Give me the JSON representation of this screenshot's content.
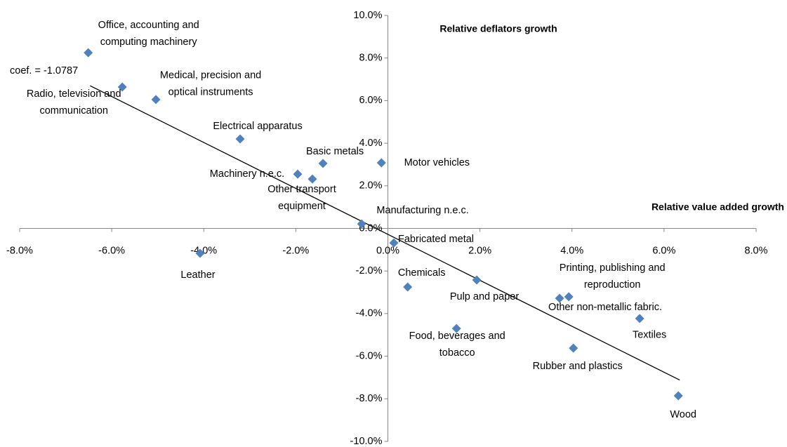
{
  "chart_data": {
    "type": "scatter",
    "x_label": "Relative value added growth",
    "y_label": "Relative deflators growth",
    "annotation": "coef. = -1.0787",
    "color": "#4f81bd",
    "xlim": [
      -8,
      8
    ],
    "ylim": [
      -10,
      10
    ],
    "xticks": [
      {
        "value": -8,
        "label": "-8.0%"
      },
      {
        "value": -6,
        "label": "-6.0%"
      },
      {
        "value": -4,
        "label": "-4.0%"
      },
      {
        "value": -2,
        "label": "-2.0%"
      },
      {
        "value": 0,
        "label": "0.0%"
      },
      {
        "value": 2,
        "label": "2.0%"
      },
      {
        "value": 4,
        "label": "4.0%"
      },
      {
        "value": 6,
        "label": "6.0%"
      },
      {
        "value": 8,
        "label": "8.0%"
      }
    ],
    "yticks": [
      {
        "value": -10,
        "label": "-10.0%"
      },
      {
        "value": -8,
        "label": "-8.0%"
      },
      {
        "value": -6,
        "label": "-6.0%"
      },
      {
        "value": -4,
        "label": "-4.0%"
      },
      {
        "value": -2,
        "label": "-2.0%"
      },
      {
        "value": 0,
        "label": "0.0%"
      },
      {
        "value": 2,
        "label": "2.0%"
      },
      {
        "value": 4,
        "label": "4.0%"
      },
      {
        "value": 6,
        "label": "6.0%"
      },
      {
        "value": 8,
        "label": "8.0%"
      },
      {
        "value": 10,
        "label": "10.0%"
      }
    ],
    "labels": [
      [
        "Office, accounting and",
        "computing machinery"
      ],
      [
        "Radio, television and",
        "communication"
      ],
      [
        "Medical, precision and",
        "optical instruments"
      ],
      [
        "Electrical apparatus"
      ],
      [
        "Basic metals"
      ],
      [
        "Machinery  n.e.c."
      ],
      [
        "Other transport",
        "equipment"
      ],
      [
        "Motor vehicles"
      ],
      [
        "Manufacturing n.e.c."
      ],
      [
        "Fabricated metal"
      ],
      [
        "Leather"
      ],
      [
        "Chemicals"
      ],
      [
        "Pulp and paper"
      ],
      [
        "Printing, publishing and",
        "reproduction"
      ],
      [
        "Other non-metallic fabric."
      ],
      [
        "Food, beverages and",
        "tobacco"
      ],
      [
        "Textiles"
      ],
      [
        "Rubber and plastics"
      ],
      [
        "Wood"
      ]
    ],
    "x": [
      -6.51,
      -5.77,
      -5.04,
      -3.21,
      -1.41,
      -1.96,
      -1.64,
      -0.14,
      -0.57,
      0.13,
      -4.08,
      0.43,
      1.93,
      3.93,
      3.73,
      1.49,
      5.47,
      4.03,
      6.31
    ],
    "values": [
      8.25,
      6.64,
      6.05,
      4.2,
      3.05,
      2.55,
      2.32,
      3.08,
      0.21,
      -0.68,
      -1.17,
      -2.75,
      -2.42,
      -3.21,
      -3.28,
      -4.7,
      -4.23,
      -5.62,
      -7.86
    ],
    "trendline": {
      "x": [
        -6.47,
        6.34
      ],
      "values": [
        6.7,
        -7.12
      ]
    }
  }
}
